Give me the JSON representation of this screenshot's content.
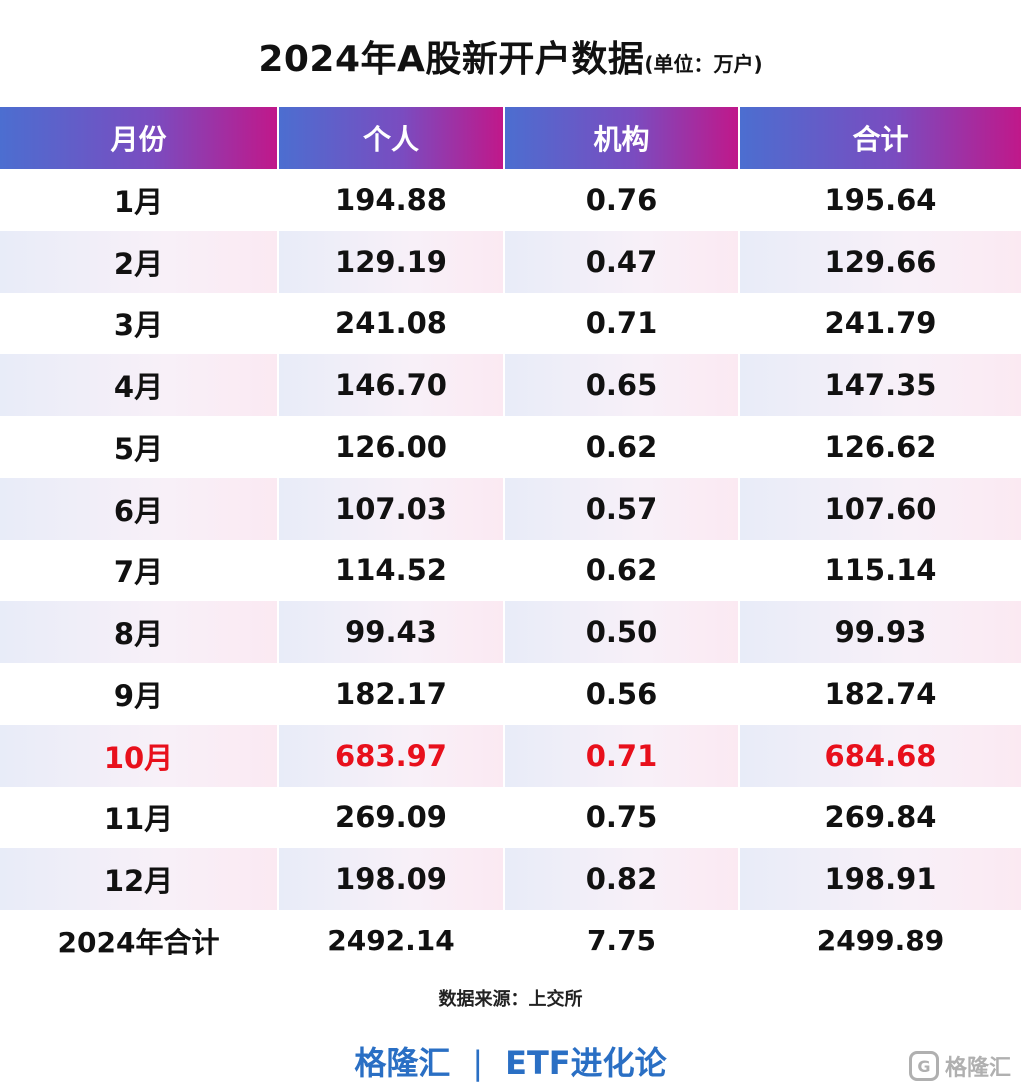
{
  "title": "2024年A股新开户数据",
  "unit_note": "(单位：万户)",
  "chart_data": {
    "type": "table",
    "columns": [
      "月份",
      "个人",
      "机构",
      "合计"
    ],
    "rows": [
      [
        "1月",
        "194.88",
        "0.76",
        "195.64"
      ],
      [
        "2月",
        "129.19",
        "0.47",
        "129.66"
      ],
      [
        "3月",
        "241.08",
        "0.71",
        "241.79"
      ],
      [
        "4月",
        "146.70",
        "0.65",
        "147.35"
      ],
      [
        "5月",
        "126.00",
        "0.62",
        "126.62"
      ],
      [
        "6月",
        "107.03",
        "0.57",
        "107.60"
      ],
      [
        "7月",
        "114.52",
        "0.62",
        "115.14"
      ],
      [
        "8月",
        "99.43",
        "0.50",
        "99.93"
      ],
      [
        "9月",
        "182.17",
        "0.56",
        "182.74"
      ],
      [
        "10月",
        "683.97",
        "0.71",
        "684.68"
      ],
      [
        "11月",
        "269.09",
        "0.75",
        "269.84"
      ],
      [
        "12月",
        "198.09",
        "0.82",
        "198.91"
      ]
    ],
    "total_row": [
      "2024年合计",
      "2492.14",
      "7.75",
      "2499.89"
    ],
    "highlight_row": "10月",
    "highlight_color": "#e8101c",
    "header_gradient": [
      "#4c6ed0",
      "#c0188a"
    ]
  },
  "source": "数据来源：上交所",
  "brand": {
    "left": "格隆汇",
    "separator": "|",
    "right": "ETF进化论"
  },
  "watermark": {
    "icon": "G",
    "text": "格隆汇"
  }
}
